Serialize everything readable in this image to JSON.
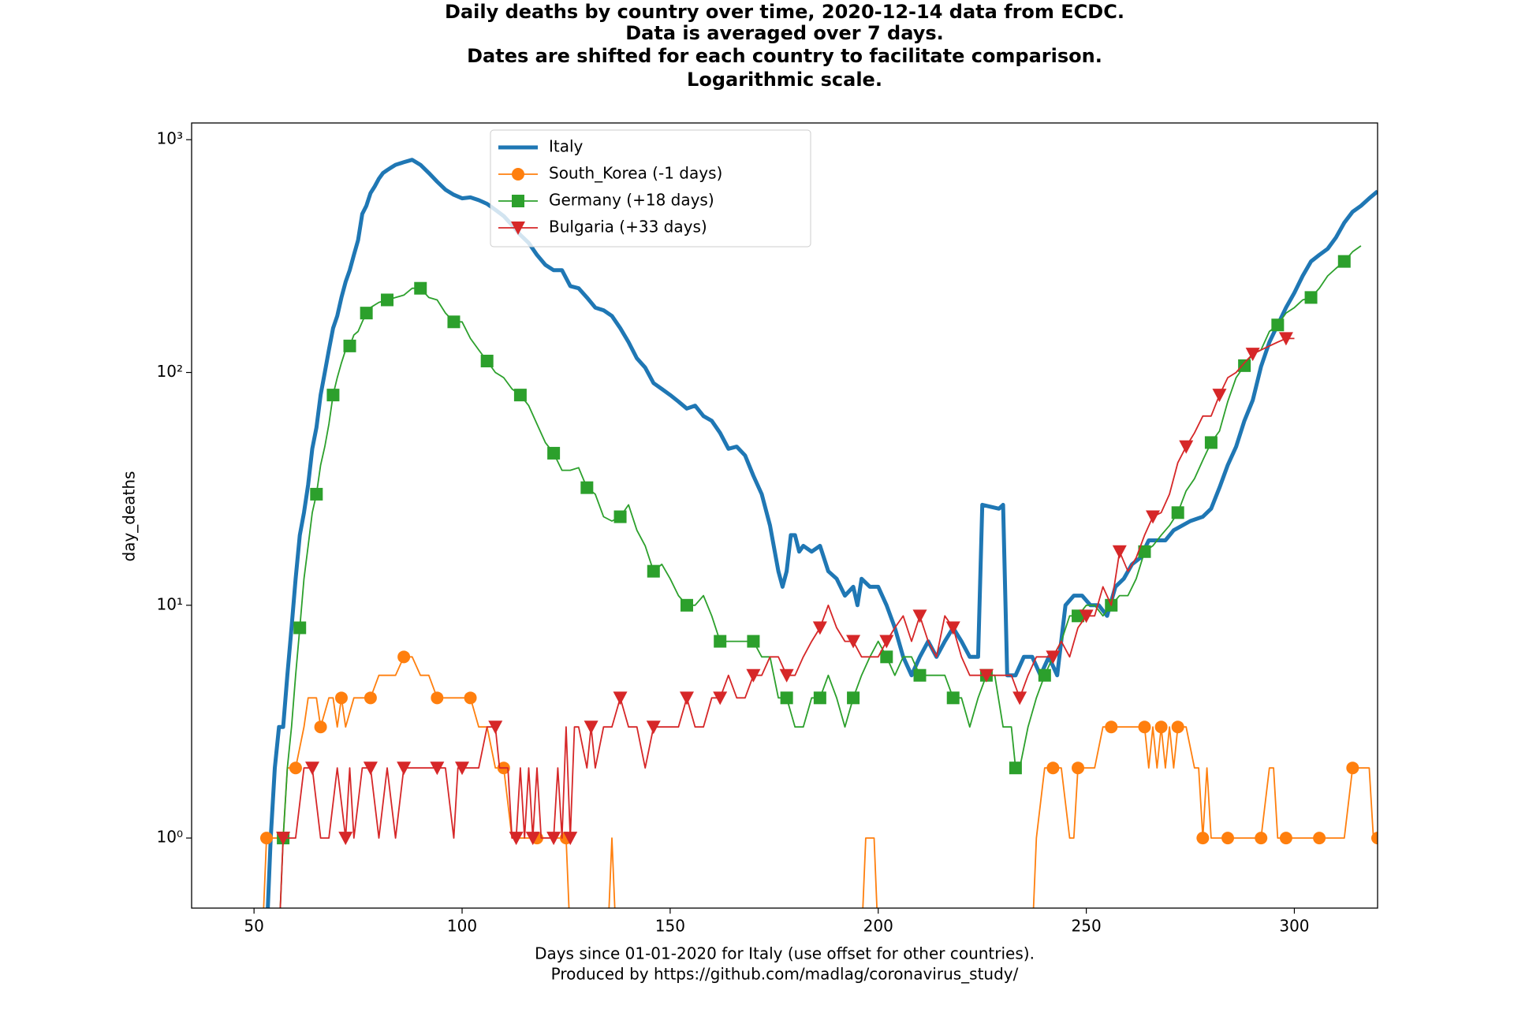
{
  "chart_data": {
    "type": "line",
    "title": [
      "Daily deaths by country over time, 2020-12-14 data from ECDC.",
      "Data is averaged over 7 days.",
      "Dates are shifted for each country to facilitate comparison.",
      "Logarithmic scale."
    ],
    "xlabel": [
      "Days since 01-01-2020 for Italy (use offset for other countries).",
      "Produced by https://github.com/madlag/coronavirus_study/"
    ],
    "ylabel": "day_deaths",
    "yscale": "log",
    "xlim": [
      35,
      320
    ],
    "ylim": [
      0.5,
      1180
    ],
    "xticks": [
      50,
      100,
      150,
      200,
      250,
      300
    ],
    "yticks": [
      {
        "value": 1,
        "label": "10⁰"
      },
      {
        "value": 10,
        "label": "10¹"
      },
      {
        "value": 100,
        "label": "10²"
      },
      {
        "value": 1000,
        "label": "10³"
      }
    ],
    "legend": "upper center",
    "series": [
      {
        "name": "Italy",
        "color": "#1f77b4",
        "marker": "none",
        "x": [
          53,
          54,
          55,
          56,
          57,
          58,
          59,
          60,
          61,
          62,
          63,
          64,
          65,
          66,
          67,
          68,
          69,
          70,
          71,
          72,
          73,
          74,
          75,
          76,
          77,
          78,
          79,
          80,
          81,
          82,
          83,
          84,
          86,
          88,
          90,
          92,
          94,
          96,
          98,
          100,
          102,
          104,
          106,
          108,
          110,
          112,
          114,
          116,
          118,
          120,
          122,
          124,
          126,
          128,
          130,
          132,
          134,
          136,
          138,
          140,
          142,
          144,
          146,
          148,
          150,
          152,
          154,
          156,
          158,
          160,
          162,
          164,
          166,
          168,
          170,
          172,
          174,
          176,
          177,
          178,
          179,
          180,
          181,
          182,
          184,
          186,
          188,
          190,
          192,
          194,
          195,
          196,
          198,
          200,
          202,
          204,
          206,
          208,
          210,
          212,
          214,
          216,
          218,
          220,
          222,
          224,
          225,
          229,
          230,
          231,
          233,
          235,
          237,
          239,
          241,
          243,
          245,
          247,
          249,
          251,
          253,
          255,
          257,
          259,
          261,
          263,
          265,
          267,
          269,
          271,
          275,
          278,
          280,
          282,
          284,
          286,
          288,
          290,
          292,
          294,
          296,
          298,
          300,
          302,
          304,
          306,
          308,
          310,
          312,
          314,
          316,
          318,
          320
        ],
        "values": [
          0,
          1,
          2,
          3,
          3,
          5,
          8,
          13,
          20,
          25,
          33,
          47,
          58,
          80,
          100,
          125,
          155,
          175,
          210,
          245,
          275,
          320,
          370,
          480,
          520,
          590,
          630,
          680,
          720,
          740,
          760,
          780,
          800,
          820,
          780,
          720,
          660,
          610,
          580,
          560,
          565,
          550,
          530,
          500,
          470,
          430,
          390,
          360,
          320,
          290,
          275,
          275,
          235,
          230,
          210,
          190,
          185,
          175,
          155,
          135,
          115,
          105,
          90,
          85,
          80,
          75,
          70,
          72,
          65,
          62,
          55,
          47,
          48,
          44,
          36,
          30,
          22,
          14,
          12,
          14,
          20,
          20,
          17,
          18,
          17,
          18,
          14,
          13,
          11,
          12,
          10,
          13,
          12,
          12,
          10,
          8,
          6,
          5,
          6,
          7,
          6,
          7,
          8,
          7,
          6,
          6,
          27,
          26,
          27,
          5,
          5,
          6,
          6,
          5,
          6,
          5,
          10,
          11,
          11,
          10,
          10,
          9,
          12,
          13,
          15,
          16,
          19,
          19,
          19,
          21,
          23,
          24,
          26,
          32,
          40,
          48,
          62,
          76,
          106,
          135,
          160,
          190,
          220,
          260,
          300,
          320,
          340,
          380,
          440,
          490,
          520,
          560,
          600
        ]
      },
      {
        "name": "South_Korea (-1 days)",
        "color": "#ff7f0e",
        "marker": "circle",
        "x": [
          52,
          53,
          55,
          57,
          58,
          60,
          62,
          63,
          65,
          66,
          68,
          69,
          70,
          71,
          72,
          74,
          76,
          78,
          80,
          82,
          84,
          86,
          88,
          90,
          92,
          94,
          96,
          98,
          100,
          102,
          104,
          106,
          108,
          110,
          112,
          114,
          116,
          118,
          120,
          122,
          124,
          125,
          126,
          135,
          136,
          137,
          196,
          197,
          199,
          200,
          237,
          238,
          240,
          242,
          244,
          246,
          247,
          248,
          250,
          252,
          254,
          256,
          258,
          260,
          262,
          264,
          265,
          266,
          267,
          268,
          269,
          270,
          271,
          272,
          274,
          276,
          277,
          278,
          279,
          280,
          282,
          284,
          286,
          288,
          290,
          292,
          294,
          295,
          296,
          298,
          300,
          302,
          304,
          306,
          308,
          310,
          312,
          314,
          316,
          318,
          319,
          320
        ],
        "values": [
          0,
          1,
          1,
          1,
          2,
          2,
          3,
          4,
          4,
          3,
          4,
          4,
          3,
          4,
          3,
          4,
          4,
          4,
          5,
          5,
          5,
          6,
          6,
          5,
          5,
          4,
          4,
          4,
          4,
          4,
          3,
          3,
          2,
          2,
          1,
          1,
          1,
          1,
          1,
          1,
          1,
          1,
          0,
          0,
          1,
          0,
          0,
          1,
          1,
          0,
          0,
          1,
          2,
          2,
          2,
          1,
          1,
          2,
          2,
          2,
          3,
          3,
          3,
          3,
          3,
          3,
          2,
          3,
          2,
          3,
          2,
          3,
          2,
          3,
          3,
          2,
          2,
          1,
          2,
          1,
          1,
          1,
          1,
          1,
          1,
          1,
          2,
          2,
          1,
          1,
          1,
          1,
          1,
          1,
          1,
          1,
          1,
          2,
          2,
          2,
          1,
          1
        ]
      },
      {
        "name": "Germany (+18 days)",
        "color": "#2ca02c",
        "marker": "square",
        "x": [
          56,
          57,
          58,
          59,
          60,
          61,
          62,
          63,
          64,
          65,
          66,
          67,
          68,
          69,
          70,
          71,
          72,
          73,
          74,
          75,
          76,
          77,
          78,
          79,
          80,
          82,
          84,
          86,
          88,
          90,
          92,
          94,
          96,
          98,
          100,
          102,
          104,
          106,
          108,
          110,
          112,
          114,
          116,
          118,
          120,
          122,
          124,
          126,
          128,
          130,
          132,
          134,
          136,
          138,
          140,
          142,
          144,
          146,
          148,
          150,
          152,
          154,
          156,
          158,
          160,
          162,
          164,
          166,
          168,
          170,
          172,
          174,
          176,
          178,
          180,
          182,
          184,
          186,
          188,
          190,
          192,
          194,
          196,
          198,
          200,
          202,
          204,
          206,
          208,
          210,
          212,
          214,
          216,
          218,
          220,
          222,
          224,
          226,
          228,
          230,
          232,
          233,
          234,
          236,
          238,
          240,
          242,
          244,
          246,
          248,
          250,
          252,
          254,
          256,
          258,
          260,
          262,
          264,
          266,
          268,
          270,
          272,
          274,
          276,
          278,
          280,
          282,
          284,
          286,
          288,
          290,
          292,
          294,
          296,
          298,
          300,
          302,
          304,
          306,
          308,
          310,
          312,
          314,
          316
        ],
        "values": [
          0,
          1,
          2,
          3,
          5,
          8,
          13,
          18,
          25,
          30,
          40,
          48,
          60,
          80,
          95,
          110,
          125,
          130,
          145,
          150,
          165,
          180,
          190,
          195,
          200,
          205,
          210,
          215,
          230,
          230,
          210,
          205,
          180,
          165,
          165,
          140,
          125,
          112,
          100,
          95,
          85,
          80,
          72,
          60,
          50,
          45,
          38,
          38,
          39,
          32,
          30,
          24,
          23,
          24,
          27,
          21,
          18,
          14,
          15,
          13,
          11,
          10,
          10,
          11,
          9,
          7,
          7,
          7,
          7,
          7,
          6,
          6,
          4,
          4,
          3,
          3,
          4,
          4,
          5,
          4,
          3,
          4,
          5,
          6,
          7,
          6,
          5,
          6,
          6,
          5,
          5,
          5,
          5,
          4,
          4,
          3,
          4,
          5,
          5,
          3,
          3,
          2,
          2,
          3,
          4,
          5,
          6,
          7,
          9,
          9,
          10,
          10,
          9,
          10,
          11,
          11,
          13,
          17,
          18,
          20,
          22,
          25,
          31,
          35,
          42,
          50,
          56,
          75,
          95,
          107,
          120,
          125,
          150,
          160,
          180,
          190,
          205,
          210,
          230,
          260,
          280,
          300,
          330,
          350
        ]
      },
      {
        "name": "Bulgaria (+33 days)",
        "color": "#d62728",
        "marker": "triangle-down",
        "x": [
          56,
          57,
          58,
          60,
          62,
          64,
          66,
          68,
          70,
          72,
          73,
          74,
          76,
          78,
          80,
          82,
          84,
          86,
          88,
          90,
          92,
          94,
          96,
          98,
          99,
          100,
          102,
          104,
          106,
          108,
          109,
          111,
          112,
          113,
          114,
          115,
          116,
          117,
          118,
          119,
          120,
          122,
          123,
          124,
          125,
          126,
          127,
          128,
          130,
          131,
          132,
          134,
          136,
          138,
          140,
          142,
          144,
          146,
          148,
          150,
          152,
          154,
          156,
          158,
          160,
          162,
          164,
          166,
          168,
          170,
          172,
          174,
          176,
          178,
          180,
          182,
          184,
          186,
          188,
          190,
          192,
          194,
          196,
          198,
          200,
          202,
          204,
          206,
          208,
          210,
          212,
          214,
          216,
          218,
          220,
          222,
          224,
          226,
          228,
          230,
          232,
          234,
          236,
          238,
          240,
          242,
          244,
          246,
          248,
          250,
          252,
          254,
          256,
          258,
          260,
          262,
          264,
          266,
          268,
          270,
          272,
          274,
          276,
          278,
          280,
          282,
          284,
          286,
          288,
          290,
          292,
          294,
          296,
          298,
          300
        ],
        "values": [
          0,
          1,
          1,
          1,
          2,
          2,
          1,
          1,
          2,
          1,
          2,
          1,
          2,
          2,
          1,
          2,
          1,
          2,
          2,
          2,
          2,
          2,
          2,
          1,
          2,
          2,
          2,
          2,
          3,
          3,
          2,
          2,
          1,
          1,
          2,
          1,
          2,
          1,
          2,
          1,
          1,
          1,
          2,
          1,
          3,
          1,
          3,
          3,
          2,
          3,
          2,
          3,
          3,
          4,
          3,
          3,
          2,
          3,
          3,
          3,
          3,
          4,
          3,
          3,
          4,
          4,
          5,
          4,
          4,
          5,
          5,
          6,
          6,
          5,
          5,
          6,
          7,
          8,
          10,
          8,
          7,
          7,
          6,
          6,
          6,
          7,
          8,
          9,
          7,
          9,
          7,
          6,
          9,
          8,
          6,
          5,
          5,
          5,
          5,
          5,
          5,
          4,
          5,
          6,
          6,
          6,
          7,
          6,
          8,
          9,
          9,
          12,
          10,
          17,
          14,
          16,
          20,
          24,
          25,
          30,
          41,
          48,
          55,
          65,
          65,
          80,
          95,
          100,
          110,
          120,
          125,
          130,
          135,
          140,
          140
        ]
      }
    ]
  }
}
